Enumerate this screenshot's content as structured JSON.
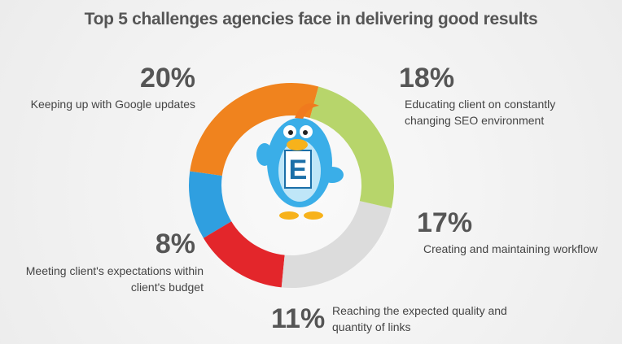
{
  "chart_data": {
    "type": "donut",
    "title": "Top 5 challenges agencies face in delivering good results",
    "categories": [
      "Keeping up with Google updates",
      "Educating client on constantly changing SEO environment",
      "Creating and maintaining workflow",
      "Reaching the expected quality and quantity of links",
      "Meeting client's expectations within client's budget"
    ],
    "values": [
      20,
      18,
      17,
      11,
      8
    ],
    "value_labels": [
      "20%",
      "18%",
      "17%",
      "11%",
      "8%"
    ],
    "colors": [
      "#f0831e",
      "#b7d56b",
      "#dcdcdc",
      "#e3262b",
      "#2f9fe0"
    ]
  }
}
